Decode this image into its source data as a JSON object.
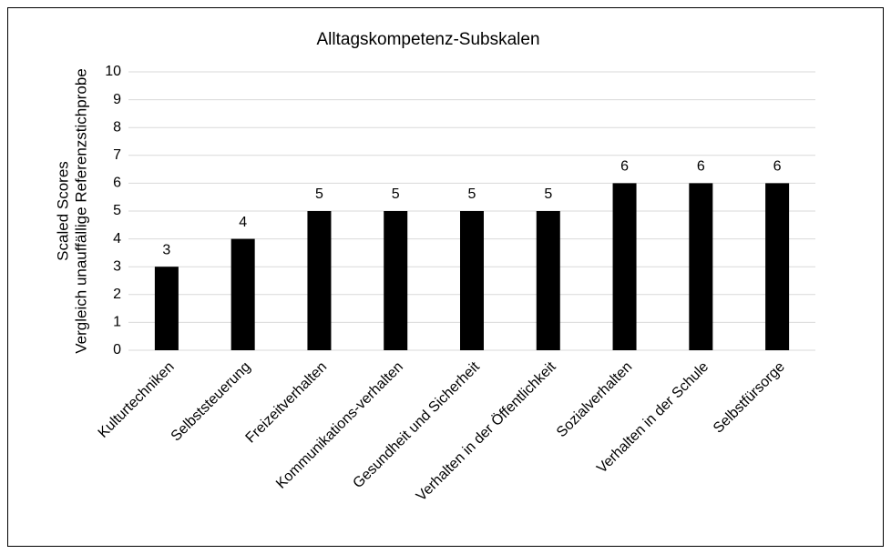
{
  "chart_data": {
    "type": "bar",
    "title": "Alltagskompetenz-Subskalen",
    "ylabel": [
      "Scaled Scores",
      "Vergleich unauffällige Referenzstichprobe"
    ],
    "categories": [
      "Kulturtechniken",
      "Selbststeuerung",
      "Freizeitverhalten",
      "Kommunikations-verhalten",
      "Gesundheit und Sicherheit",
      "Verhalten in der Öffentlichkeit",
      "Sozialverhalten",
      "Verhalten in der Schule",
      "Selbstfürsorge"
    ],
    "values": [
      3,
      4,
      5,
      5,
      5,
      5,
      6,
      6,
      6
    ],
    "color": "#000000",
    "ylim": [
      0,
      10
    ],
    "yticks": [
      0,
      1,
      2,
      3,
      4,
      5,
      6,
      7,
      8,
      9,
      10
    ],
    "grid": true
  }
}
